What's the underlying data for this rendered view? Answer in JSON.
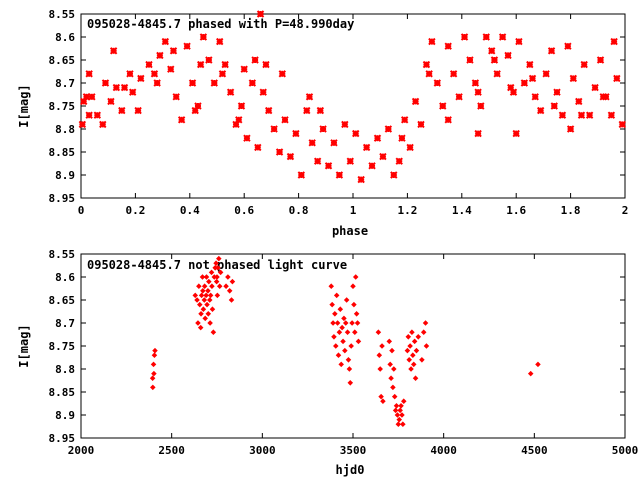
{
  "colors": {
    "points": "#ff0000",
    "axes": "#000000",
    "background": "#ffffff"
  },
  "chart_data": [
    {
      "type": "scatter",
      "title": "095028-4845.7 phased with P=48.990day",
      "xlabel": "phase",
      "ylabel": "I[mag]",
      "xlim": [
        0,
        2
      ],
      "ylim": [
        8.55,
        8.95
      ],
      "y_inverted": true,
      "grid": false,
      "legend": "none",
      "xticks": [
        "0",
        "0.2",
        "0.4",
        "0.6",
        "0.8",
        "1",
        "1.2",
        "1.4",
        "1.6",
        "1.8",
        "2"
      ],
      "yticks": [
        "8.55",
        "8.6",
        "8.65",
        "8.7",
        "8.75",
        "8.8",
        "8.85",
        "8.9",
        "8.95"
      ],
      "marker": "cross",
      "points": [
        [
          0.005,
          8.79
        ],
        [
          0.01,
          8.74
        ],
        [
          0.02,
          8.73
        ],
        [
          0.03,
          8.68
        ],
        [
          0.04,
          8.73
        ],
        [
          0.06,
          8.77
        ],
        [
          0.08,
          8.79
        ],
        [
          0.09,
          8.7
        ],
        [
          0.11,
          8.74
        ],
        [
          0.13,
          8.71
        ],
        [
          0.15,
          8.76
        ],
        [
          0.16,
          8.71
        ],
        [
          0.19,
          8.72
        ],
        [
          0.21,
          8.76
        ],
        [
          0.22,
          8.69
        ],
        [
          0.25,
          8.66
        ],
        [
          0.27,
          8.68
        ],
        [
          0.29,
          8.64
        ],
        [
          0.31,
          8.61
        ],
        [
          0.33,
          8.67
        ],
        [
          0.35,
          8.73
        ],
        [
          0.37,
          8.78
        ],
        [
          0.39,
          8.62
        ],
        [
          0.41,
          8.7
        ],
        [
          0.43,
          8.75
        ],
        [
          0.45,
          8.6
        ],
        [
          0.47,
          8.65
        ],
        [
          0.49,
          8.7
        ],
        [
          0.51,
          8.61
        ],
        [
          0.53,
          8.66
        ],
        [
          0.55,
          8.72
        ],
        [
          0.57,
          8.79
        ],
        [
          0.59,
          8.75
        ],
        [
          0.61,
          8.82
        ],
        [
          0.63,
          8.7
        ],
        [
          0.65,
          8.84
        ],
        [
          0.67,
          8.72
        ],
        [
          0.69,
          8.76
        ],
        [
          0.71,
          8.8
        ],
        [
          0.73,
          8.85
        ],
        [
          0.75,
          8.78
        ],
        [
          0.77,
          8.86
        ],
        [
          0.79,
          8.81
        ],
        [
          0.81,
          8.9
        ],
        [
          0.83,
          8.76
        ],
        [
          0.85,
          8.83
        ],
        [
          0.87,
          8.87
        ],
        [
          0.89,
          8.8
        ],
        [
          0.91,
          8.88
        ],
        [
          0.93,
          8.83
        ],
        [
          0.95,
          8.9
        ],
        [
          0.97,
          8.79
        ],
        [
          0.99,
          8.87
        ],
        [
          1.01,
          8.81
        ],
        [
          1.03,
          8.91
        ],
        [
          1.05,
          8.84
        ],
        [
          1.07,
          8.88
        ],
        [
          1.09,
          8.82
        ],
        [
          1.11,
          8.86
        ],
        [
          1.13,
          8.8
        ],
        [
          1.15,
          8.9
        ],
        [
          1.17,
          8.87
        ],
        [
          1.19,
          8.78
        ],
        [
          1.21,
          8.84
        ],
        [
          1.23,
          8.74
        ],
        [
          1.25,
          8.79
        ],
        [
          1.27,
          8.66
        ],
        [
          1.29,
          8.61
        ],
        [
          1.31,
          8.7
        ],
        [
          1.33,
          8.75
        ],
        [
          1.35,
          8.62
        ],
        [
          1.37,
          8.68
        ],
        [
          1.39,
          8.73
        ],
        [
          1.41,
          8.6
        ],
        [
          1.43,
          8.65
        ],
        [
          1.45,
          8.7
        ],
        [
          1.47,
          8.75
        ],
        [
          1.49,
          8.6
        ],
        [
          1.51,
          8.63
        ],
        [
          1.53,
          8.68
        ],
        [
          1.55,
          8.6
        ],
        [
          1.57,
          8.64
        ],
        [
          1.59,
          8.72
        ],
        [
          1.61,
          8.61
        ],
        [
          1.63,
          8.7
        ],
        [
          1.65,
          8.66
        ],
        [
          1.67,
          8.73
        ],
        [
          1.69,
          8.76
        ],
        [
          1.71,
          8.68
        ],
        [
          1.73,
          8.63
        ],
        [
          1.75,
          8.72
        ],
        [
          1.77,
          8.77
        ],
        [
          1.79,
          8.62
        ],
        [
          1.81,
          8.69
        ],
        [
          1.83,
          8.74
        ],
        [
          1.85,
          8.66
        ],
        [
          1.87,
          8.77
        ],
        [
          1.89,
          8.71
        ],
        [
          1.91,
          8.65
        ],
        [
          1.93,
          8.73
        ],
        [
          1.95,
          8.77
        ],
        [
          1.97,
          8.69
        ],
        [
          1.99,
          8.79
        ],
        [
          0.12,
          8.63
        ],
        [
          0.18,
          8.68
        ],
        [
          0.28,
          8.7
        ],
        [
          0.34,
          8.63
        ],
        [
          0.44,
          8.66
        ],
        [
          0.52,
          8.68
        ],
        [
          0.6,
          8.67
        ],
        [
          0.64,
          8.65
        ],
        [
          0.68,
          8.66
        ],
        [
          0.74,
          8.68
        ],
        [
          0.84,
          8.73
        ],
        [
          0.88,
          8.76
        ],
        [
          1.18,
          8.82
        ],
        [
          1.28,
          8.68
        ],
        [
          1.46,
          8.72
        ],
        [
          1.52,
          8.65
        ],
        [
          1.58,
          8.71
        ],
        [
          1.66,
          8.69
        ],
        [
          1.74,
          8.75
        ],
        [
          1.84,
          8.77
        ],
        [
          1.92,
          8.73
        ],
        [
          1.96,
          8.61
        ],
        [
          0.66,
          8.55
        ],
        [
          1.6,
          8.81
        ],
        [
          1.46,
          8.81
        ],
        [
          0.03,
          8.77
        ],
        [
          0.42,
          8.76
        ],
        [
          0.58,
          8.78
        ],
        [
          1.35,
          8.78
        ],
        [
          1.8,
          8.8
        ]
      ]
    },
    {
      "type": "scatter",
      "title": "095028-4845.7 not phased light curve",
      "xlabel": "hjd0",
      "ylabel": "I[mag]",
      "xlim": [
        2000,
        5000
      ],
      "ylim": [
        8.55,
        8.95
      ],
      "y_inverted": true,
      "grid": false,
      "legend": "none",
      "xticks": [
        "2000",
        "2500",
        "3000",
        "3500",
        "4000",
        "4500",
        "5000"
      ],
      "yticks": [
        "8.55",
        "8.6",
        "8.65",
        "8.7",
        "8.75",
        "8.8",
        "8.85",
        "8.9",
        "8.95"
      ],
      "marker": "diamond",
      "points": [
        [
          2395,
          8.82
        ],
        [
          2396,
          8.84
        ],
        [
          2400,
          8.79
        ],
        [
          2402,
          8.81
        ],
        [
          2405,
          8.77
        ],
        [
          2408,
          8.76
        ],
        [
          2630,
          8.64
        ],
        [
          2640,
          8.65
        ],
        [
          2645,
          8.7
        ],
        [
          2650,
          8.62
        ],
        [
          2655,
          8.66
        ],
        [
          2660,
          8.71
        ],
        [
          2662,
          8.68
        ],
        [
          2665,
          8.64
        ],
        [
          2670,
          8.6
        ],
        [
          2672,
          8.63
        ],
        [
          2675,
          8.67
        ],
        [
          2680,
          8.65
        ],
        [
          2682,
          8.62
        ],
        [
          2685,
          8.69
        ],
        [
          2690,
          8.64
        ],
        [
          2692,
          8.6
        ],
        [
          2695,
          8.66
        ],
        [
          2700,
          8.63
        ],
        [
          2702,
          8.68
        ],
        [
          2705,
          8.61
        ],
        [
          2710,
          8.65
        ],
        [
          2712,
          8.7
        ],
        [
          2715,
          8.64
        ],
        [
          2720,
          8.59
        ],
        [
          2722,
          8.62
        ],
        [
          2725,
          8.67
        ],
        [
          2730,
          8.72
        ],
        [
          2735,
          8.6
        ],
        [
          2740,
          8.58
        ],
        [
          2745,
          8.57
        ],
        [
          2748,
          8.61
        ],
        [
          2750,
          8.6
        ],
        [
          2752,
          8.64
        ],
        [
          2755,
          8.58
        ],
        [
          2760,
          8.56
        ],
        [
          2765,
          8.62
        ],
        [
          2770,
          8.59
        ],
        [
          2800,
          8.62
        ],
        [
          2810,
          8.6
        ],
        [
          2820,
          8.63
        ],
        [
          2830,
          8.65
        ],
        [
          2835,
          8.61
        ],
        [
          3380,
          8.62
        ],
        [
          3385,
          8.66
        ],
        [
          3390,
          8.7
        ],
        [
          3395,
          8.73
        ],
        [
          3400,
          8.68
        ],
        [
          3405,
          8.75
        ],
        [
          3410,
          8.64
        ],
        [
          3415,
          8.7
        ],
        [
          3420,
          8.77
        ],
        [
          3425,
          8.72
        ],
        [
          3430,
          8.67
        ],
        [
          3435,
          8.79
        ],
        [
          3440,
          8.71
        ],
        [
          3445,
          8.74
        ],
        [
          3450,
          8.69
        ],
        [
          3455,
          8.76
        ],
        [
          3460,
          8.7
        ],
        [
          3465,
          8.65
        ],
        [
          3470,
          8.72
        ],
        [
          3475,
          8.78
        ],
        [
          3480,
          8.8
        ],
        [
          3485,
          8.83
        ],
        [
          3490,
          8.75
        ],
        [
          3495,
          8.7
        ],
        [
          3500,
          8.62
        ],
        [
          3505,
          8.66
        ],
        [
          3510,
          8.72
        ],
        [
          3515,
          8.6
        ],
        [
          3520,
          8.68
        ],
        [
          3525,
          8.7
        ],
        [
          3530,
          8.74
        ],
        [
          3640,
          8.72
        ],
        [
          3645,
          8.77
        ],
        [
          3650,
          8.8
        ],
        [
          3655,
          8.86
        ],
        [
          3660,
          8.75
        ],
        [
          3665,
          8.87
        ],
        [
          3700,
          8.74
        ],
        [
          3705,
          8.79
        ],
        [
          3710,
          8.82
        ],
        [
          3715,
          8.76
        ],
        [
          3720,
          8.84
        ],
        [
          3725,
          8.8
        ],
        [
          3730,
          8.86
        ],
        [
          3735,
          8.89
        ],
        [
          3740,
          8.88
        ],
        [
          3745,
          8.9
        ],
        [
          3750,
          8.92
        ],
        [
          3755,
          8.91
        ],
        [
          3760,
          8.89
        ],
        [
          3765,
          8.88
        ],
        [
          3770,
          8.9
        ],
        [
          3775,
          8.92
        ],
        [
          3780,
          8.87
        ],
        [
          3800,
          8.76
        ],
        [
          3805,
          8.73
        ],
        [
          3810,
          8.78
        ],
        [
          3815,
          8.75
        ],
        [
          3820,
          8.8
        ],
        [
          3825,
          8.72
        ],
        [
          3830,
          8.77
        ],
        [
          3835,
          8.79
        ],
        [
          3840,
          8.74
        ],
        [
          3845,
          8.82
        ],
        [
          3850,
          8.76
        ],
        [
          3860,
          8.73
        ],
        [
          3880,
          8.78
        ],
        [
          3890,
          8.72
        ],
        [
          3900,
          8.7
        ],
        [
          3905,
          8.75
        ],
        [
          4480,
          8.81
        ],
        [
          4520,
          8.79
        ]
      ]
    }
  ]
}
